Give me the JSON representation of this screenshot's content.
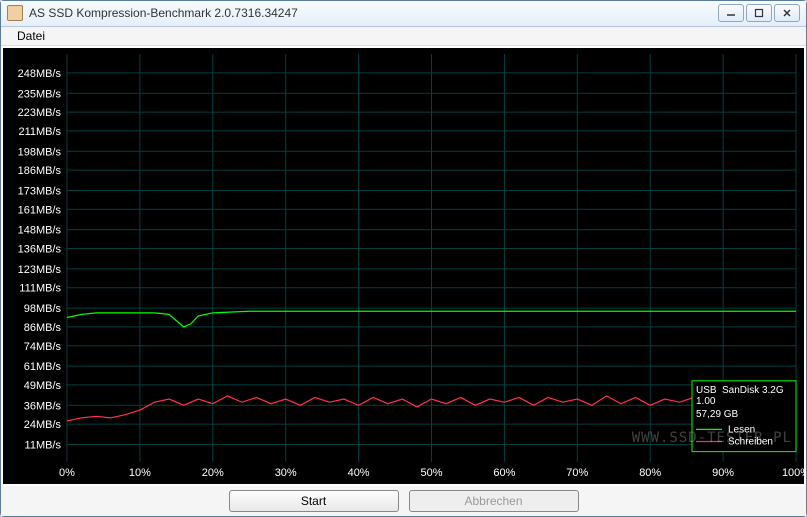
{
  "window": {
    "title": "AS SSD Kompression-Benchmark 2.0.7316.34247"
  },
  "menu": {
    "file": "Datei"
  },
  "chart": {
    "type": "line",
    "background_color": "#000000",
    "grid_color": "#004040",
    "axis_label_color": "#ffffff",
    "axis_font_size": 11,
    "y_labels": [
      "248MB/s",
      "235MB/s",
      "223MB/s",
      "211MB/s",
      "198MB/s",
      "186MB/s",
      "173MB/s",
      "161MB/s",
      "148MB/s",
      "136MB/s",
      "123MB/s",
      "111MB/s",
      "98MB/s",
      "86MB/s",
      "74MB/s",
      "61MB/s",
      "49MB/s",
      "36MB/s",
      "24MB/s",
      "11MB/s"
    ],
    "y_values": [
      248,
      235,
      223,
      211,
      198,
      186,
      173,
      161,
      148,
      136,
      123,
      111,
      98,
      86,
      74,
      61,
      49,
      36,
      24,
      11
    ],
    "ylim": [
      0,
      260
    ],
    "x_labels": [
      "0%",
      "10%",
      "20%",
      "30%",
      "40%",
      "50%",
      "60%",
      "70%",
      "80%",
      "90%",
      "100%"
    ],
    "x_values": [
      0,
      10,
      20,
      30,
      40,
      50,
      60,
      70,
      80,
      90,
      100
    ],
    "xlim": [
      0,
      100
    ],
    "series": {
      "read": {
        "label": "Lesen",
        "color": "#00ff00",
        "line_width": 1.2,
        "x": [
          0,
          2,
          4,
          6,
          8,
          10,
          12,
          14,
          15,
          16,
          17,
          18,
          20,
          25,
          30,
          35,
          40,
          45,
          50,
          55,
          60,
          65,
          70,
          75,
          80,
          85,
          90,
          95,
          100
        ],
        "y": [
          92,
          94,
          95,
          95,
          95,
          95,
          95,
          94,
          90,
          86,
          88,
          93,
          95,
          96,
          96,
          96,
          96,
          96,
          96,
          96,
          96,
          96,
          96,
          96,
          96,
          96,
          96,
          96,
          96
        ]
      },
      "write": {
        "label": "Schreiben",
        "color": "#ff3050",
        "line_width": 1.2,
        "x": [
          0,
          2,
          4,
          6,
          8,
          10,
          12,
          14,
          16,
          18,
          20,
          22,
          24,
          26,
          28,
          30,
          32,
          34,
          36,
          38,
          40,
          42,
          44,
          46,
          48,
          50,
          52,
          54,
          56,
          58,
          60,
          62,
          64,
          66,
          68,
          70,
          72,
          74,
          76,
          78,
          80,
          82,
          84,
          86,
          88,
          90,
          92,
          94,
          96,
          98,
          100
        ],
        "y": [
          26,
          28,
          29,
          28,
          30,
          33,
          38,
          40,
          36,
          40,
          37,
          42,
          38,
          41,
          37,
          40,
          36,
          41,
          38,
          40,
          36,
          41,
          37,
          40,
          35,
          40,
          37,
          41,
          36,
          40,
          38,
          41,
          36,
          41,
          38,
          40,
          36,
          42,
          37,
          41,
          36,
          40,
          38,
          41,
          32,
          40,
          37,
          42,
          36,
          40,
          38
        ]
      }
    },
    "legend": {
      "border_color": "#00ff00",
      "text_color": "#ffffff",
      "device_line1": "USB",
      "device_line2": "1.00",
      "device_right": "SanDisk 3.2G",
      "size": "57,29 GB",
      "items": [
        {
          "color": "#00ff00",
          "label": "Lesen"
        },
        {
          "color": "#ff3050",
          "label": "Schreiben"
        }
      ]
    }
  },
  "buttons": {
    "start": "Start",
    "abort": "Abbrechen"
  },
  "watermark": "WWW.SSD-TESTER.PL"
}
